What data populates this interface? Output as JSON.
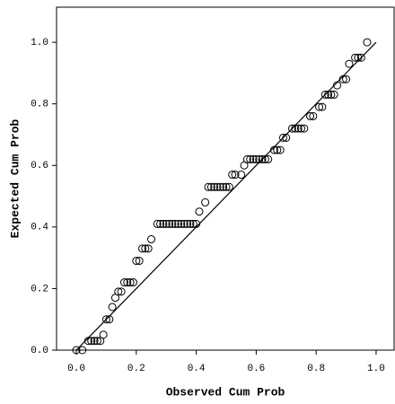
{
  "chart_data": {
    "type": "scatter",
    "x_label": "Observed Cum Prob",
    "y_label": "Expected Cum Prob",
    "xlim": [
      -0.066,
      1.063
    ],
    "ylim": [
      0,
      1.114
    ],
    "xticks": [
      {
        "value": 0,
        "label": "0.0"
      },
      0.2,
      0.4,
      0.6,
      0.8,
      {
        "value": 1,
        "label": "1.0"
      }
    ],
    "yticks": [
      {
        "value": 0,
        "label": "0.0"
      },
      0.2,
      0.4,
      0.6,
      0.8,
      {
        "value": 1,
        "label": "1.0"
      }
    ],
    "color": "#000000",
    "series": [
      {
        "x": [
          0.0,
          0.02,
          0.04,
          0.05,
          0.06,
          0.07,
          0.08,
          0.09,
          0.1,
          0.11,
          0.12,
          0.13,
          0.14,
          0.15,
          0.16,
          0.17,
          0.18,
          0.19,
          0.2,
          0.21,
          0.22,
          0.23,
          0.24,
          0.25,
          0.27,
          0.28,
          0.29,
          0.3,
          0.31,
          0.32,
          0.33,
          0.34,
          0.35,
          0.36,
          0.37,
          0.38,
          0.39,
          0.4,
          0.41,
          0.43,
          0.44,
          0.45,
          0.46,
          0.47,
          0.48,
          0.49,
          0.5,
          0.51,
          0.52,
          0.53,
          0.55,
          0.56,
          0.57,
          0.58,
          0.59,
          0.6,
          0.61,
          0.62,
          0.63,
          0.64,
          0.66,
          0.67,
          0.68,
          0.69,
          0.7,
          0.72,
          0.73,
          0.74,
          0.75,
          0.76,
          0.78,
          0.79,
          0.81,
          0.82,
          0.83,
          0.84,
          0.85,
          0.86,
          0.87,
          0.89,
          0.9,
          0.91,
          0.93,
          0.94,
          0.95,
          0.97
        ],
        "values": [
          0.0,
          0.0,
          0.03,
          0.03,
          0.03,
          0.03,
          0.03,
          0.05,
          0.1,
          0.1,
          0.14,
          0.17,
          0.19,
          0.19,
          0.22,
          0.22,
          0.22,
          0.22,
          0.29,
          0.29,
          0.33,
          0.33,
          0.33,
          0.36,
          0.41,
          0.41,
          0.41,
          0.41,
          0.41,
          0.41,
          0.41,
          0.41,
          0.41,
          0.41,
          0.41,
          0.41,
          0.41,
          0.41,
          0.45,
          0.48,
          0.53,
          0.53,
          0.53,
          0.53,
          0.53,
          0.53,
          0.53,
          0.53,
          0.57,
          0.57,
          0.57,
          0.6,
          0.62,
          0.62,
          0.62,
          0.62,
          0.62,
          0.62,
          0.62,
          0.62,
          0.65,
          0.65,
          0.65,
          0.69,
          0.69,
          0.72,
          0.72,
          0.72,
          0.72,
          0.72,
          0.76,
          0.76,
          0.79,
          0.79,
          0.83,
          0.83,
          0.83,
          0.83,
          0.86,
          0.88,
          0.88,
          0.93,
          0.95,
          0.95,
          0.95,
          1.0
        ]
      },
      {
        "type": "line",
        "x": [
          0,
          1
        ],
        "values": [
          0,
          1
        ]
      }
    ]
  }
}
